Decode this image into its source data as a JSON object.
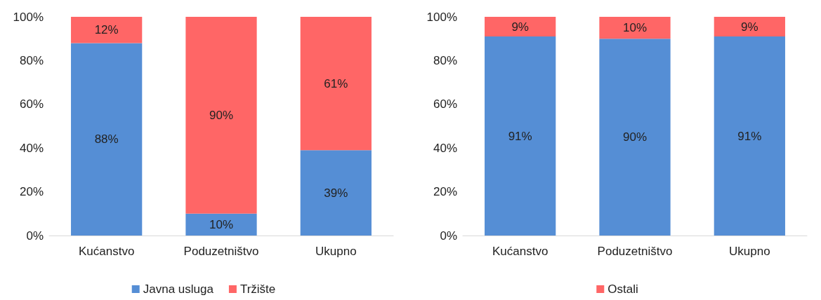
{
  "chart_data": [
    {
      "type": "bar",
      "stacked": true,
      "categories": [
        "Kućanstvo",
        "Poduzetništvo",
        "Ukupno"
      ],
      "ylim": [
        0,
        100
      ],
      "yticks": [
        {
          "value": 0,
          "label": "0%"
        },
        {
          "value": 20,
          "label": "20%"
        },
        {
          "value": 40,
          "label": "40%"
        },
        {
          "value": 60,
          "label": "60%"
        },
        {
          "value": 80,
          "label": "80%"
        },
        {
          "value": 100,
          "label": "100%"
        }
      ],
      "series": [
        {
          "name": "Javna usluga",
          "color": "#558ed5",
          "values": [
            88,
            10,
            39
          ],
          "value_labels": [
            "88%",
            "10%",
            "39%"
          ]
        },
        {
          "name": "Tržište",
          "color": "#ff6666",
          "values": [
            12,
            90,
            61
          ],
          "value_labels": [
            "12%",
            "90%",
            "61%"
          ]
        }
      ],
      "legend": "bottom",
      "grid": false
    },
    {
      "type": "bar",
      "stacked": true,
      "categories": [
        "Kućanstvo",
        "Poduzetništvo",
        "Ukupno"
      ],
      "ylim": [
        0,
        100
      ],
      "yticks": [
        {
          "value": 0,
          "label": "0%"
        },
        {
          "value": 20,
          "label": "20%"
        },
        {
          "value": 40,
          "label": "40%"
        },
        {
          "value": 60,
          "label": "60%"
        },
        {
          "value": 80,
          "label": "80%"
        },
        {
          "value": 100,
          "label": "100%"
        }
      ],
      "series": [
        {
          "color": "#558ed5",
          "values": [
            91,
            90,
            91
          ],
          "value_labels": [
            "91%",
            "90%",
            "91%"
          ]
        },
        {
          "name": "Ostali",
          "color": "#ff6666",
          "values": [
            9,
            10,
            9
          ],
          "value_labels": [
            "9%",
            "10%",
            "9%"
          ]
        }
      ],
      "legend": "bottom",
      "grid": false
    }
  ]
}
